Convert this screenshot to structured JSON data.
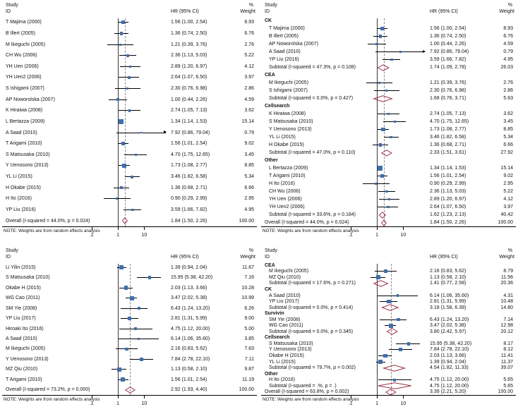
{
  "figure": {
    "note": "NOTE: Weights are from random effects analysis",
    "columns": {
      "study": "Study",
      "id": "ID",
      "hr": "HR (95% CI)",
      "pct": "%",
      "weight": "Weight"
    }
  },
  "style": {
    "square_color": "#3f6fad",
    "diamond_color": "#9e2f44",
    "ci_color": "#000000",
    "null_line_color": "#3a3a3a",
    "pooled_line_color": "#8a8a8a"
  },
  "chart_data": [
    {
      "type": "forest",
      "panel": "top-left",
      "x_ticks": [
        0.1,
        1,
        10
      ],
      "x_tick_labels": [
        ".1",
        "1",
        "10"
      ],
      "x_range": [
        0.09,
        70
      ],
      "null_line": 1,
      "groups": [
        {
          "name": "",
          "rows": [
            {
              "label": "T Majima (2000)",
              "hr": 1.56,
              "lo": 1.0,
              "hi": 2.54,
              "ci_text": "1.56 (1.00, 2.54)",
              "weight": "8.93"
            },
            {
              "label": "B Illert (2005)",
              "hr": 1.36,
              "lo": 0.74,
              "hi": 2.5,
              "ci_text": "1.36 (0.74, 2.50)",
              "weight": "6.76"
            },
            {
              "label": "M Ikeguchi (2005)",
              "hr": 1.21,
              "lo": 0.39,
              "hi": 3.76,
              "ci_text": "1.21 (0.39, 3.76)",
              "weight": "2.76"
            },
            {
              "label": "CH Wu (2006)",
              "hr": 2.36,
              "lo": 1.13,
              "hi": 5.03,
              "ci_text": "2.36 (1.13, 5.03)",
              "weight": "5.22"
            },
            {
              "label": "YH Uen (2006)",
              "hr": 2.89,
              "lo": 1.2,
              "hi": 6.97,
              "ci_text": "2.89 (1.20, 6.97)",
              "weight": "4.12"
            },
            {
              "label": "YH Uen2 (2006)",
              "hr": 2.64,
              "lo": 1.07,
              "hi": 6.5,
              "ci_text": "2.64 (1.07, 6.50)",
              "weight": "3.97"
            },
            {
              "label": "S Ishigami (2007)",
              "hr": 2.3,
              "lo": 0.76,
              "hi": 6.98,
              "ci_text": "2.30 (0.76, 6.98)",
              "weight": "2.86"
            },
            {
              "label": "AP Noworolska (2007)",
              "hr": 1.0,
              "lo": 0.44,
              "hi": 2.26,
              "ci_text": "1.00 (0.44, 2.26)",
              "weight": "4.59"
            },
            {
              "label": "K Hiraiwa (2008)",
              "hr": 2.74,
              "lo": 1.05,
              "hi": 7.13,
              "ci_text": "2.74 (1.05, 7.13)",
              "weight": "3.62"
            },
            {
              "label": "L Bertazza (2009)",
              "hr": 1.34,
              "lo": 1.14,
              "hi": 1.53,
              "ci_text": "1.34 (1.14, 1.53)",
              "weight": "15.14"
            },
            {
              "label": "A Saad (2010)",
              "hr": 7.92,
              "lo": 0.86,
              "hi": 79.04,
              "ci_text": "7.92 (0.86, 79.04)",
              "weight": "0.79"
            },
            {
              "label": "T Arigami (2010)",
              "hr": 1.56,
              "lo": 1.01,
              "hi": 2.54,
              "ci_text": "1.56 (1.01, 2.54)",
              "weight": "9.02"
            },
            {
              "label": "S Matsusaka (2010)",
              "hr": 4.7,
              "lo": 1.75,
              "hi": 12.65,
              "ci_text": "4.70 (1.75, 12.65)",
              "weight": "3.45"
            },
            {
              "label": "Y Uenosono (2013)",
              "hr": 1.73,
              "lo": 1.08,
              "hi": 2.77,
              "ci_text": "1.73 (1.08, 2.77)",
              "weight": "8.85"
            },
            {
              "label": "YL Li (2015)",
              "hr": 3.46,
              "lo": 1.82,
              "hi": 6.58,
              "ci_text": "3.46 (1.82, 6.58)",
              "weight": "5.34"
            },
            {
              "label": "H Okabe (2015)",
              "hr": 1.36,
              "lo": 0.68,
              "hi": 2.71,
              "ci_text": "1.36 (0.68, 2.71)",
              "weight": "6.66"
            },
            {
              "label": "H Ito (2016)",
              "hr": 0.9,
              "lo": 0.29,
              "hi": 2.99,
              "ci_text": "0.90 (0.29, 2.99)",
              "weight": "2.95"
            },
            {
              "label": "YP Liu (2016)",
              "hr": 3.59,
              "lo": 1.66,
              "hi": 7.82,
              "ci_text": "3.59 (1.66, 7.82)",
              "weight": "4.95"
            }
          ]
        }
      ],
      "overall": {
        "label": "Overall  (I-squared = 44.0%, p = 0.024)",
        "hr": 1.84,
        "lo": 1.5,
        "hi": 2.26,
        "ci_text": "1.84 (1.50, 2.26)",
        "weight": "100.00"
      }
    },
    {
      "type": "forest",
      "panel": "top-right",
      "x_ticks": [
        0.1,
        1,
        10
      ],
      "x_tick_labels": [
        ".1",
        "1",
        "10"
      ],
      "x_range": [
        0.09,
        70
      ],
      "null_line": 1,
      "groups": [
        {
          "name": "CK",
          "rows": [
            {
              "label": "T Majima (2000)",
              "hr": 1.56,
              "lo": 1.0,
              "hi": 2.54,
              "ci_text": "1.56 (1.00, 2.54)",
              "weight": "8.93"
            },
            {
              "label": "B Illert (2005)",
              "hr": 1.36,
              "lo": 0.74,
              "hi": 2.5,
              "ci_text": "1.36 (0.74, 2.50)",
              "weight": "6.76"
            },
            {
              "label": "AP Noworolska (2007)",
              "hr": 1.0,
              "lo": 0.44,
              "hi": 2.26,
              "ci_text": "1.00 (0.44, 2.26)",
              "weight": "4.59"
            },
            {
              "label": "A Saad (2010)",
              "hr": 7.92,
              "lo": 0.86,
              "hi": 79.04,
              "ci_text": "7.92 (0.86, 79.04)",
              "weight": "0.79"
            },
            {
              "label": "YP Liu (2016)",
              "hr": 3.59,
              "lo": 1.66,
              "hi": 7.82,
              "ci_text": "3.59 (1.66, 7.82)",
              "weight": "4.95"
            }
          ],
          "subtotal": {
            "label": "Subtotal  (I-squared = 47.3%, p = 0.108)",
            "hr": 1.74,
            "lo": 1.09,
            "hi": 2.78,
            "ci_text": "1.74 (1.09, 2.78)",
            "weight": "26.03"
          }
        },
        {
          "name": "CEA",
          "rows": [
            {
              "label": "M Ikeguchi (2005)",
              "hr": 1.21,
              "lo": 0.39,
              "hi": 3.76,
              "ci_text": "1.21 (0.39, 3.76)",
              "weight": "2.76"
            },
            {
              "label": "S Ishigami (2007)",
              "hr": 2.3,
              "lo": 0.76,
              "hi": 6.98,
              "ci_text": "2.30 (0.76, 6.98)",
              "weight": "2.86"
            }
          ],
          "subtotal": {
            "label": "Subtotal  (I-squared = 0.0%, p = 0.427)",
            "hr": 1.68,
            "lo": 0.76,
            "hi": 3.71,
            "ci_text": "1.68 (0.76, 3.71)",
            "weight": "5.63"
          }
        },
        {
          "name": "Cellsearch",
          "rows": [
            {
              "label": "K Hiraiwa (2008)",
              "hr": 2.74,
              "lo": 1.05,
              "hi": 7.13,
              "ci_text": "2.74 (1.05, 7.13)",
              "weight": "3.62"
            },
            {
              "label": "S Matsusaka (2010)",
              "hr": 4.7,
              "lo": 1.75,
              "hi": 12.65,
              "ci_text": "4.70 (1.75, 12.65)",
              "weight": "3.45"
            },
            {
              "label": "Y Uenosono (2013)",
              "hr": 1.73,
              "lo": 1.08,
              "hi": 2.77,
              "ci_text": "1.73 (1.08, 2.77)",
              "weight": "8.85"
            },
            {
              "label": "YL Li (2015)",
              "hr": 3.46,
              "lo": 1.82,
              "hi": 6.58,
              "ci_text": "3.46 (1.82, 6.58)",
              "weight": "5.34"
            },
            {
              "label": "H Okabe (2015)",
              "hr": 1.36,
              "lo": 0.68,
              "hi": 2.71,
              "ci_text": "1.36 (0.68, 2.71)",
              "weight": "6.66"
            }
          ],
          "subtotal": {
            "label": "Subtotal  (I-squared = 47.0%, p = 0.110)",
            "hr": 2.33,
            "lo": 1.51,
            "hi": 3.61,
            "ci_text": "2.33 (1.51, 3.61)",
            "weight": "27.92"
          }
        },
        {
          "name": "Other",
          "rows": [
            {
              "label": "L Bertazza (2009)",
              "hr": 1.34,
              "lo": 1.14,
              "hi": 1.53,
              "ci_text": "1.34 (1.14, 1.53)",
              "weight": "15.14"
            },
            {
              "label": "T Arigami (2010)",
              "hr": 1.56,
              "lo": 1.01,
              "hi": 2.54,
              "ci_text": "1.56 (1.01, 2.54)",
              "weight": "9.02"
            },
            {
              "label": "H Ito (2016)",
              "hr": 0.9,
              "lo": 0.29,
              "hi": 2.99,
              "ci_text": "0.90 (0.29, 2.99)",
              "weight": "2.95"
            },
            {
              "label": "CH Wu (2006)",
              "hr": 2.36,
              "lo": 1.13,
              "hi": 5.03,
              "ci_text": "2.36 (1.13, 5.03)",
              "weight": "5.22"
            },
            {
              "label": "YH Uen (2006)",
              "hr": 2.89,
              "lo": 1.2,
              "hi": 6.97,
              "ci_text": "2.89 (1.20, 6.97)",
              "weight": "4.12"
            },
            {
              "label": "YH Uen2 (2006)",
              "hr": 2.64,
              "lo": 1.07,
              "hi": 6.5,
              "ci_text": "2.64 (1.07, 6.50)",
              "weight": "3.97"
            }
          ],
          "subtotal": {
            "label": "Subtotal  (I-squared = 33.6%, p = 0.184)",
            "hr": 1.62,
            "lo": 1.23,
            "hi": 2.13,
            "ci_text": "1.62 (1.23, 2.13)",
            "weight": "40.42"
          }
        }
      ],
      "overall": {
        "label": "Overall  (I-squared = 44.0%, p = 0.024)",
        "hr": 1.84,
        "lo": 1.5,
        "hi": 2.26,
        "ci_text": "1.84 (1.50, 2.26)",
        "weight": "100.00"
      }
    },
    {
      "type": "forest",
      "panel": "bottom-left",
      "x_ticks": [
        0.1,
        1,
        10
      ],
      "x_tick_labels": [
        ".1",
        "1",
        "10"
      ],
      "x_range": [
        0.09,
        70
      ],
      "null_line": 1,
      "groups": [
        {
          "name": "",
          "rows": [
            {
              "label": "Li Yilin (2015)",
              "hr": 1.39,
              "lo": 0.94,
              "hi": 2.04,
              "ci_text": "1.39 (0.94, 2.04)",
              "weight": "11.67"
            },
            {
              "label": "S Matsusaka (2010)",
              "hr": 15.95,
              "lo": 5.38,
              "hi": 42.2,
              "ci_text": "15.95 (5.38, 42.20)",
              "weight": "7.16"
            },
            {
              "label": "Okabe H (2015)",
              "hr": 2.03,
              "lo": 1.13,
              "hi": 3.66,
              "ci_text": "2.03 (1.13, 3.66)",
              "weight": "10.28"
            },
            {
              "label": "WG Cao (2011)",
              "hr": 3.47,
              "lo": 2.02,
              "hi": 5.38,
              "ci_text": "3.47 (2.02, 5.38)",
              "weight": "10.99"
            },
            {
              "label": "SM Yie (2008)",
              "hr": 6.43,
              "lo": 1.24,
              "hi": 13.2,
              "ci_text": "6.43 (1.24, 13.20)",
              "weight": "6.26"
            },
            {
              "label": "YP Liu (2017)",
              "hr": 2.81,
              "lo": 1.31,
              "hi": 5.99,
              "ci_text": "2.81 (1.31, 5.99)",
              "weight": "9.00"
            },
            {
              "label": "Hiroaki Ito (2016)",
              "hr": 4.75,
              "lo": 1.12,
              "hi": 20.0,
              "ci_text": "4.75 (1.12, 20.00)",
              "weight": "5.00"
            },
            {
              "label": "A Saad (2010)",
              "hr": 6.14,
              "lo": 1.06,
              "hi": 35.6,
              "ci_text": "6.14 (1.06, 35.60)",
              "weight": "3.85"
            },
            {
              "label": "M Ikeguchi (2005)",
              "hr": 2.16,
              "lo": 0.83,
              "hi": 5.62,
              "ci_text": "2.16 (0.83, 5.62)",
              "weight": "7.63"
            },
            {
              "label": "Y Uenosono (2013)",
              "hr": 7.84,
              "lo": 2.78,
              "hi": 22.1,
              "ci_text": "7.84 (2.78, 22.10)",
              "weight": "7.11"
            },
            {
              "label": "MZ Qiu (2010)",
              "hr": 1.13,
              "lo": 0.58,
              "hi": 2.1,
              "ci_text": "1.13 (0.58, 2.10)",
              "weight": "9.87"
            },
            {
              "label": "T Arigami (2010)",
              "hr": 1.56,
              "lo": 1.01,
              "hi": 2.54,
              "ci_text": "1.56 (1.01, 2.54)",
              "weight": "11.19"
            }
          ]
        }
      ],
      "overall": {
        "label": "Overall  (I-squared = 73.2%, p = 0.000)",
        "hr": 2.92,
        "lo": 1.93,
        "hi": 4.4,
        "ci_text": "2.92 (1.93, 4.40)",
        "weight": "100.00"
      }
    },
    {
      "type": "forest",
      "panel": "bottom-right",
      "x_ticks": [
        0.1,
        1,
        10
      ],
      "x_tick_labels": [
        ".1",
        "1",
        "10"
      ],
      "x_range": [
        0.09,
        70
      ],
      "null_line": 1,
      "groups": [
        {
          "name": "CEA",
          "rows": [
            {
              "label": "M Ikeguchi (2005)",
              "hr": 2.16,
              "lo": 0.83,
              "hi": 5.62,
              "ci_text": "2.16 (0.83, 5.62)",
              "weight": "8.79"
            },
            {
              "label": "MZ Qiu (2010)",
              "hr": 1.13,
              "lo": 0.58,
              "hi": 2.1,
              "ci_text": "1.13 (0.58, 2.10)",
              "weight": "11.56"
            }
          ],
          "subtotal": {
            "label": "Subtotal  (I-squared = 17.6%, p = 0.271)",
            "hr": 1.41,
            "lo": 0.77,
            "hi": 2.58,
            "ci_text": "1.41 (0.77, 2.58)",
            "weight": "20.36"
          }
        },
        {
          "name": "CK",
          "rows": [
            {
              "label": "A Saad (2010)",
              "hr": 6.14,
              "lo": 1.06,
              "hi": 35.6,
              "ci_text": "6.14 (1.06, 35.60)",
              "weight": "4.31"
            },
            {
              "label": "YP Liu (2017)",
              "hr": 2.81,
              "lo": 1.31,
              "hi": 5.99,
              "ci_text": "2.81 (1.31, 5.99)",
              "weight": "10.48"
            }
          ],
          "subtotal": {
            "label": "Subtotal  (I-squared = 0.0%, p = 0.414)",
            "hr": 3.18,
            "lo": 1.58,
            "hi": 6.39,
            "ci_text": "3.18 (1.58, 6.39)",
            "weight": "14.80"
          }
        },
        {
          "name": "Survivin",
          "rows": [
            {
              "label": "SM Yie (2008)",
              "hr": 6.43,
              "lo": 1.24,
              "hi": 13.2,
              "ci_text": "6.43 (1.24, 13.20)",
              "weight": "7.14"
            },
            {
              "label": "WG Cao (2011)",
              "hr": 3.47,
              "lo": 2.02,
              "hi": 5.38,
              "ci_text": "3.47 (2.02, 5.38)",
              "weight": "12.98"
            }
          ],
          "subtotal": {
            "label": "Subtotal  (I-squared = 0.0%, p = 0.345)",
            "hr": 3.8,
            "lo": 2.42,
            "hi": 5.97,
            "ci_text": "3.80 (2.42, 5.97)",
            "weight": "20.12"
          }
        },
        {
          "name": "Cellsearch",
          "rows": [
            {
              "label": "S Matsusaka (2010)",
              "hr": 15.95,
              "lo": 5.38,
              "hi": 42.2,
              "ci_text": "15.95 (5.38, 42.20)",
              "weight": "8.17"
            },
            {
              "label": "Y Uenosono (2013)",
              "hr": 7.84,
              "lo": 2.78,
              "hi": 22.1,
              "ci_text": "7.84 (2.78, 22.10)",
              "weight": "8.12"
            },
            {
              "label": "Okabe H (2015)",
              "hr": 2.03,
              "lo": 1.13,
              "hi": 3.66,
              "ci_text": "2.03 (1.13, 3.66)",
              "weight": "11.41"
            },
            {
              "label": "YL Li (2015)",
              "hr": 1.39,
              "lo": 0.94,
              "hi": 2.04,
              "ci_text": "1.39 (0.94, 2.04)",
              "weight": "11.37"
            }
          ],
          "subtotal": {
            "label": "Subtotal  (I-squared = 79.7%, p = 0.002)",
            "hr": 4.54,
            "lo": 1.82,
            "hi": 11.33,
            "ci_text": "4.54 (1.82, 11.33)",
            "weight": "39.07"
          }
        },
        {
          "name": "Other",
          "rows": [
            {
              "label": "H Ito (2016)",
              "hr": 4.75,
              "lo": 1.12,
              "hi": 20.0,
              "ci_text": "4.75 (1.12, 20.00)",
              "weight": "5.65"
            }
          ],
          "subtotal": {
            "label": "Subtotal  (I-squared = .%, p = .)",
            "hr": 4.75,
            "lo": 1.12,
            "hi": 20.0,
            "ci_text": "4.75 (1.12, 20.00)",
            "weight": "5.65"
          }
        }
      ],
      "overall": {
        "label": "Overall  (I-squared = 63.8%, p = 0.002)",
        "hr": 3.39,
        "lo": 2.21,
        "hi": 5.2,
        "ci_text": "3.39 (2.21, 5.20)",
        "weight": "100.00"
      }
    }
  ]
}
